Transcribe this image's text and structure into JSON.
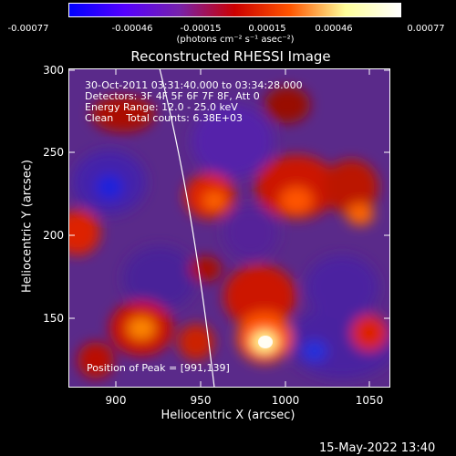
{
  "colorbar": {
    "ticks": [
      "-0.00077",
      "-0.00046",
      "-0.00015",
      "0.00015",
      "0.00046",
      "0.00077"
    ],
    "units": "(photons cm⁻² s⁻¹ asec⁻²)",
    "colors": [
      "#0000ff",
      "#5500ff",
      "#7722aa",
      "#cc0000",
      "#ff5500",
      "#ffff99",
      "#ffffff"
    ]
  },
  "title": "Reconstructed RHESSI Image",
  "info": {
    "line1": "30-Oct-2011 03:31:40.000 to 03:34:28.000",
    "line2": "Detectors: 3F 4F 5F 6F 7F 8F, Att 0",
    "line3": "Energy Range: 12.0 - 25.0 keV",
    "line4": "Clean    Total counts: 6.38E+03"
  },
  "peak_label": "Position of Peak = [991,139]",
  "axes": {
    "xlabel": "Heliocentric X (arcsec)",
    "ylabel": "Heliocentric Y (arcsec)",
    "xticks": [
      "900",
      "950",
      "1000",
      "1050"
    ],
    "yticks": [
      "300",
      "250",
      "200",
      "150"
    ],
    "xrange": [
      870,
      1065
    ],
    "yrange": [
      107,
      303
    ]
  },
  "timestamp": "15-May-2022 13:40"
}
